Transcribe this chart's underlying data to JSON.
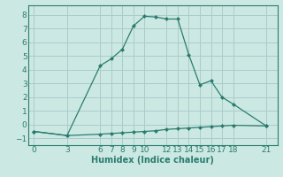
{
  "xlabel": "Humidex (Indice chaleur)",
  "line1_x": [
    0,
    3,
    6,
    7,
    8,
    9,
    10,
    11,
    12,
    13,
    14,
    15,
    16,
    17,
    18,
    21
  ],
  "line1_y": [
    -0.5,
    -0.8,
    4.3,
    4.8,
    5.5,
    7.2,
    7.9,
    7.85,
    7.7,
    7.7,
    5.1,
    2.9,
    3.2,
    2.0,
    1.5,
    -0.1
  ],
  "line2_x": [
    0,
    3,
    6,
    7,
    8,
    9,
    10,
    11,
    12,
    13,
    14,
    15,
    16,
    17,
    18,
    21
  ],
  "line2_y": [
    -0.5,
    -0.8,
    -0.7,
    -0.65,
    -0.6,
    -0.55,
    -0.5,
    -0.45,
    -0.35,
    -0.3,
    -0.25,
    -0.2,
    -0.15,
    -0.1,
    -0.05,
    -0.1
  ],
  "line_color": "#2a7d6e",
  "bg_color": "#cce8e2",
  "grid_color": "#aacccc",
  "ylim": [
    -1.5,
    8.7
  ],
  "xlim": [
    -0.5,
    22
  ],
  "yticks": [
    -1,
    0,
    1,
    2,
    3,
    4,
    5,
    6,
    7,
    8
  ],
  "xticks": [
    0,
    3,
    6,
    7,
    8,
    9,
    10,
    12,
    13,
    14,
    15,
    16,
    17,
    18,
    21
  ],
  "xlabel_fontsize": 7,
  "tick_fontsize": 6.5
}
